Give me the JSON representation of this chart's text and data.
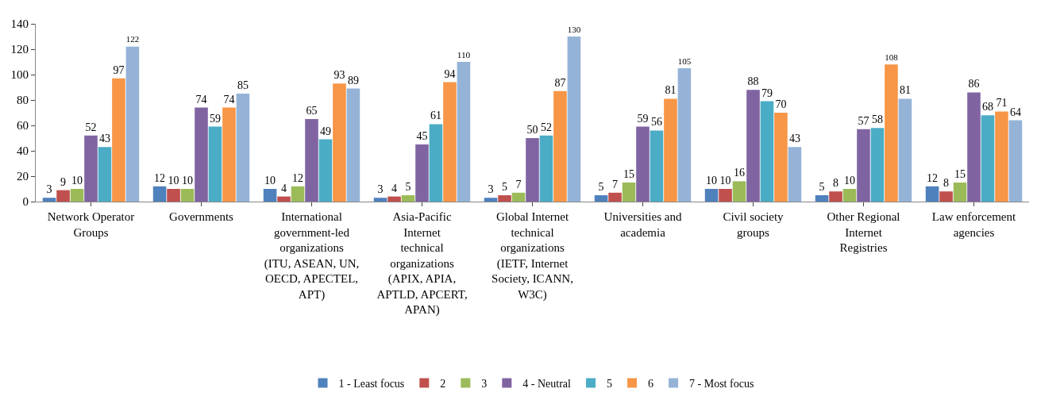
{
  "chart_data": {
    "type": "bar",
    "categories": [
      "Network Operator Groups",
      "Governments",
      "International government-led organizations (ITU, ASEAN, UN, OECD, APECTEL, APT)",
      "Asia-Pacific Internet technical organizations (APIX, APIA, APTLD, APCERT, APAN)",
      "Global Internet technical organizations (IETF, Internet Society, ICANN, W3C)",
      "Universities and academia",
      "Civil society groups",
      "Other Regional Internet Registries",
      "Law enforcement agencies"
    ],
    "series": [
      {
        "name": "1 - Least focus",
        "color": "#4f81bd",
        "values": [
          3,
          12,
          10,
          3,
          3,
          5,
          10,
          5,
          12
        ]
      },
      {
        "name": "2",
        "color": "#c0504d",
        "values": [
          9,
          10,
          4,
          4,
          5,
          7,
          10,
          8,
          8
        ]
      },
      {
        "name": "3",
        "color": "#9bbb59",
        "values": [
          10,
          10,
          12,
          5,
          7,
          15,
          16,
          10,
          15
        ]
      },
      {
        "name": "4 - Neutral",
        "color": "#8064a2",
        "values": [
          52,
          74,
          65,
          45,
          50,
          59,
          88,
          57,
          86
        ]
      },
      {
        "name": "5",
        "color": "#4bacc6",
        "values": [
          43,
          59,
          49,
          61,
          52,
          56,
          79,
          58,
          68
        ]
      },
      {
        "name": "6",
        "color": "#f79646",
        "values": [
          97,
          74,
          93,
          94,
          87,
          81,
          70,
          108,
          71
        ]
      },
      {
        "name": "7 - Most focus",
        "color": "#95b3d7",
        "values": [
          122,
          85,
          89,
          110,
          130,
          105,
          43,
          81,
          64
        ]
      }
    ],
    "ylim": [
      0,
      140
    ],
    "yticks": [
      0,
      20,
      40,
      60,
      80,
      100,
      120,
      140
    ],
    "grid": false,
    "legend": "bottom",
    "data_labels": true
  }
}
